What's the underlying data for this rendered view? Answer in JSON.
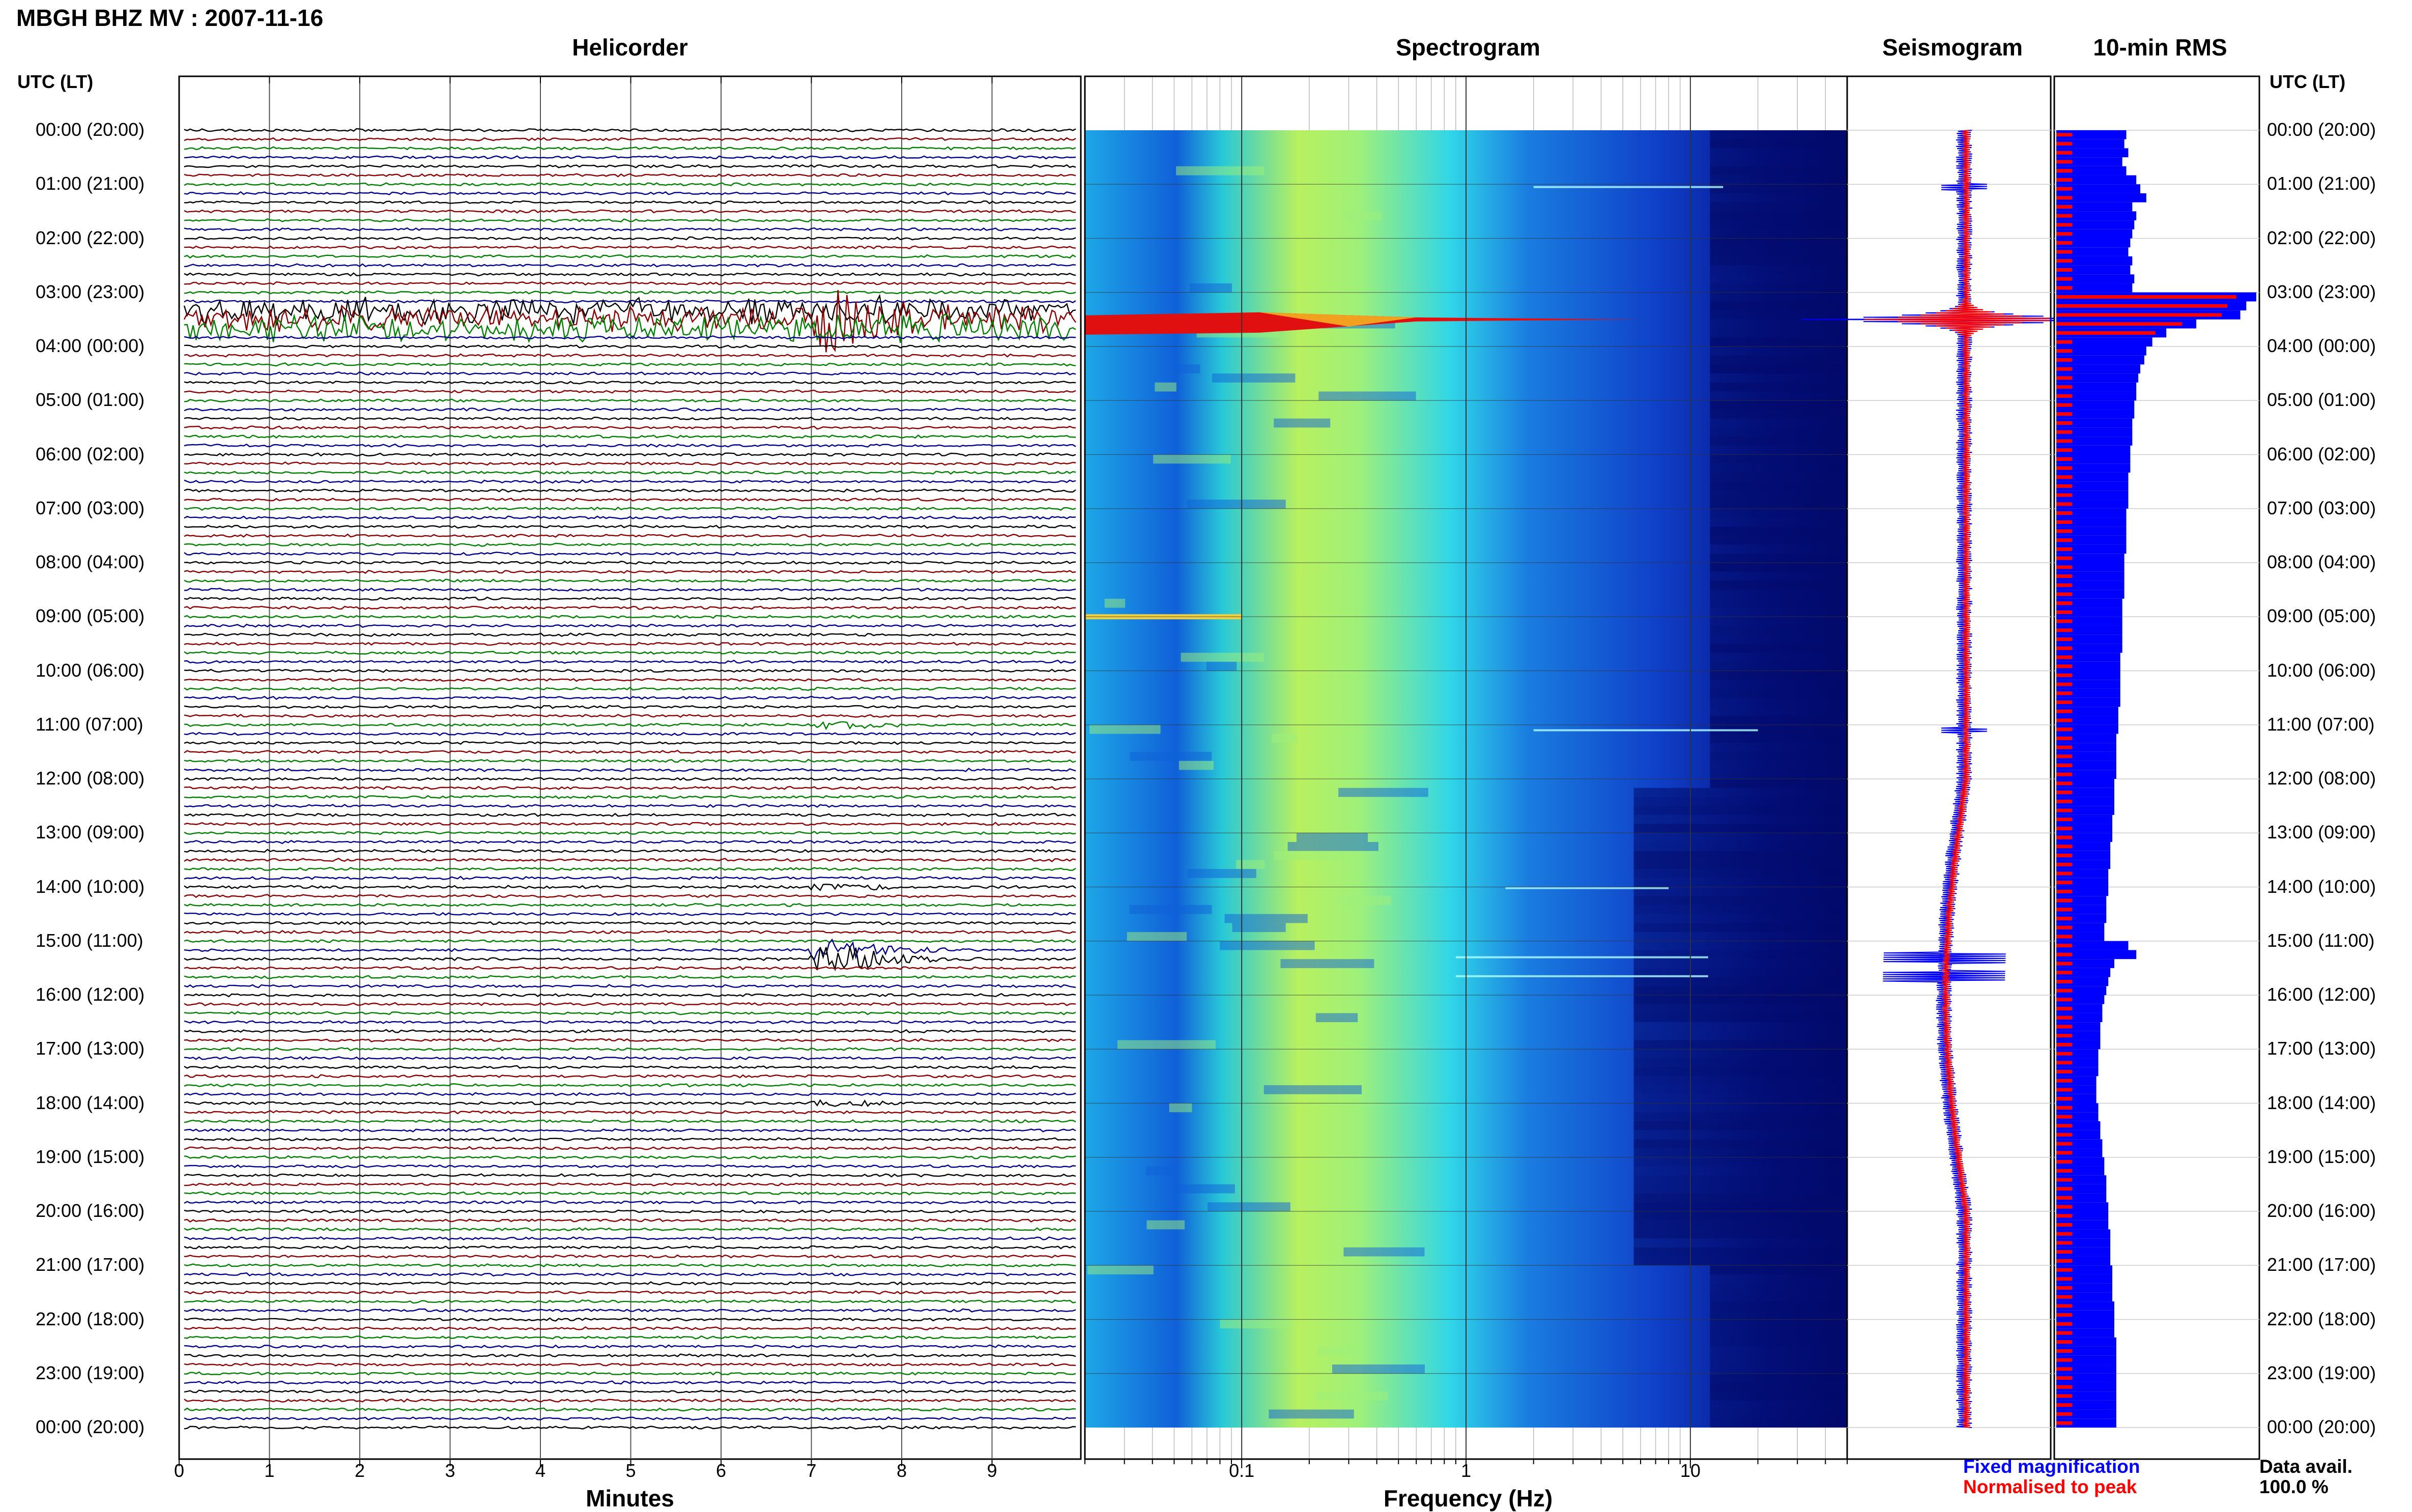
{
  "header": {
    "title": "MBGH BHZ MV : 2007-11-16",
    "left_axis_label": "UTC (LT)",
    "right_axis_label": "UTC (LT)"
  },
  "panels": {
    "helicorder": "Helicorder",
    "spectrogram": "Spectrogram",
    "seismogram": "Seismogram",
    "rms": "10-min RMS"
  },
  "time_labels": [
    "00:00 (20:00)",
    "01:00 (21:00)",
    "02:00 (22:00)",
    "03:00 (23:00)",
    "04:00 (00:00)",
    "05:00 (01:00)",
    "06:00 (02:00)",
    "07:00 (03:00)",
    "08:00 (04:00)",
    "09:00 (05:00)",
    "10:00 (06:00)",
    "11:00 (07:00)",
    "12:00 (08:00)",
    "13:00 (09:00)",
    "14:00 (10:00)",
    "15:00 (11:00)",
    "16:00 (12:00)",
    "17:00 (13:00)",
    "18:00 (14:00)",
    "19:00 (15:00)",
    "20:00 (16:00)",
    "21:00 (17:00)",
    "22:00 (18:00)",
    "23:00 (19:00)",
    "00:00 (20:00)"
  ],
  "minute_ticks": [
    "0",
    "1",
    "2",
    "3",
    "4",
    "5",
    "6",
    "7",
    "8",
    "9"
  ],
  "freq_ticks": [
    "0.1",
    "1",
    "10"
  ],
  "axes": {
    "minutes_label": "Minutes",
    "frequency_label": "Frequency (Hz)"
  },
  "legend": {
    "fixed": "Fixed magnification",
    "normalised": "Normalised to peak"
  },
  "availability": {
    "label": "Data avail.",
    "value": "100.0 %"
  },
  "colors": {
    "trace_cycle": [
      "#000000",
      "#8b0000",
      "#008000",
      "#00008b"
    ],
    "fixed": "#0000ff",
    "normalised": "#ff0000",
    "spectrogram_colormap": "jet"
  },
  "chart_data": {
    "type": "seismic-summary",
    "hours": 24,
    "traces_per_hour": 6,
    "minutes_per_trace": 10,
    "freq_range_hz": [
      0.02,
      50
    ],
    "freq_scale": "log",
    "events": [
      {
        "time_utc": "03:30",
        "label": "large event",
        "relative_amplitude": 1.0
      },
      {
        "time_utc": "15:10",
        "label": "event",
        "relative_amplitude": 0.45
      },
      {
        "time_utc": "15:20",
        "label": "event",
        "relative_amplitude": 0.55
      },
      {
        "time_utc": "14:00",
        "label": "small event",
        "relative_amplitude": 0.12
      },
      {
        "time_utc": "11:00",
        "label": "small event",
        "relative_amplitude": 0.15
      },
      {
        "time_utc": "18:00",
        "label": "small event",
        "relative_amplitude": 0.1
      }
    ],
    "rms_fixed_relative": [
      0.35,
      0.34,
      0.36,
      0.33,
      0.35,
      0.4,
      0.42,
      0.45,
      0.38,
      0.4,
      0.39,
      0.38,
      0.37,
      0.36,
      0.38,
      0.37,
      0.39,
      0.38,
      1.0,
      0.95,
      0.92,
      0.7,
      0.55,
      0.48,
      0.45,
      0.44,
      0.42,
      0.41,
      0.4,
      0.4,
      0.39,
      0.39,
      0.38,
      0.38,
      0.38,
      0.37,
      0.37,
      0.37,
      0.36,
      0.36,
      0.36,
      0.36,
      0.35,
      0.35,
      0.35,
      0.35,
      0.35,
      0.34,
      0.34,
      0.34,
      0.34,
      0.34,
      0.33,
      0.33,
      0.33,
      0.33,
      0.33,
      0.33,
      0.32,
      0.32,
      0.32,
      0.32,
      0.32,
      0.32,
      0.31,
      0.31,
      0.31,
      0.3,
      0.3,
      0.3,
      0.3,
      0.3,
      0.29,
      0.29,
      0.29,
      0.29,
      0.28,
      0.28,
      0.28,
      0.27,
      0.27,
      0.27,
      0.26,
      0.26,
      0.26,
      0.25,
      0.25,
      0.25,
      0.24,
      0.24,
      0.36,
      0.4,
      0.29,
      0.27,
      0.26,
      0.25,
      0.24,
      0.23,
      0.23,
      0.22,
      0.22,
      0.22,
      0.21,
      0.21,
      0.21,
      0.2,
      0.2,
      0.2,
      0.21,
      0.21,
      0.22,
      0.22,
      0.23,
      0.23,
      0.24,
      0.24,
      0.25,
      0.25,
      0.25,
      0.26,
      0.26,
      0.26,
      0.27,
      0.27,
      0.27,
      0.27,
      0.28,
      0.28,
      0.28,
      0.28,
      0.29,
      0.29,
      0.29,
      0.29,
      0.3,
      0.3,
      0.3,
      0.3,
      0.3,
      0.3,
      0.3,
      0.3,
      0.3,
      0.3
    ]
  }
}
